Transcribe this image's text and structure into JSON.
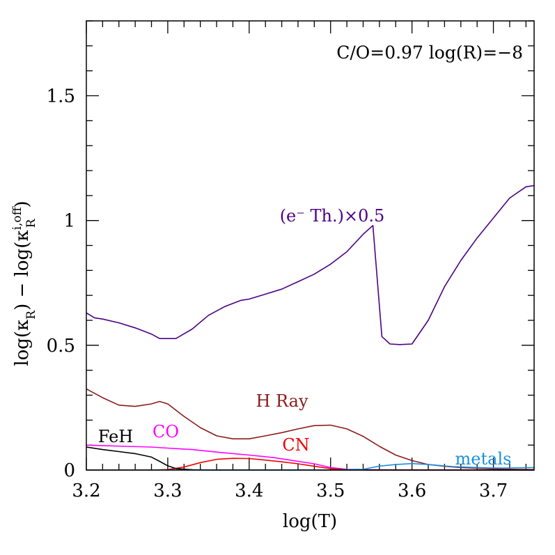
{
  "chart_data": {
    "type": "line",
    "annotation": "C/O=0.97  log(R)=−8",
    "xlabel": "log(T)",
    "ylabel": "log(κ_R) − log(κ_R^{i,off})",
    "xlim": [
      3.2,
      3.75
    ],
    "ylim": [
      0,
      1.8
    ],
    "x_ticks": [
      3.2,
      3.3,
      3.4,
      3.5,
      3.6,
      3.7
    ],
    "x_tick_labels": [
      "3.2",
      "3.3",
      "3.4",
      "3.5",
      "3.6",
      "3.7"
    ],
    "y_ticks": [
      0,
      0.5,
      1,
      1.5
    ],
    "y_tick_labels": [
      "0",
      "0.5",
      "1",
      "1.5"
    ],
    "grid": false,
    "series": [
      {
        "label": "(e⁻ Th.)×0.5",
        "color": "#4b0082",
        "x": [
          3.2,
          3.21,
          3.22,
          3.24,
          3.26,
          3.28,
          3.29,
          3.31,
          3.33,
          3.35,
          3.37,
          3.39,
          3.4,
          3.42,
          3.44,
          3.46,
          3.48,
          3.5,
          3.52,
          3.54,
          3.552,
          3.563,
          3.573,
          3.585,
          3.6,
          3.62,
          3.64,
          3.66,
          3.68,
          3.7,
          3.72,
          3.74,
          3.75
        ],
        "y": [
          0.63,
          0.61,
          0.605,
          0.59,
          0.57,
          0.545,
          0.527,
          0.527,
          0.565,
          0.62,
          0.655,
          0.68,
          0.685,
          0.705,
          0.725,
          0.755,
          0.785,
          0.825,
          0.875,
          0.945,
          0.98,
          0.535,
          0.505,
          0.503,
          0.505,
          0.6,
          0.735,
          0.84,
          0.93,
          1.01,
          1.09,
          1.135,
          1.14
        ]
      },
      {
        "label": "H Ray",
        "color": "#8b1a1a",
        "x": [
          3.2,
          3.22,
          3.24,
          3.26,
          3.28,
          3.29,
          3.3,
          3.32,
          3.34,
          3.36,
          3.38,
          3.4,
          3.42,
          3.44,
          3.46,
          3.48,
          3.5,
          3.52,
          3.54,
          3.56,
          3.58,
          3.6,
          3.62,
          3.64,
          3.66,
          3.68,
          3.7,
          3.72,
          3.75
        ],
        "y": [
          0.325,
          0.29,
          0.26,
          0.255,
          0.265,
          0.275,
          0.265,
          0.215,
          0.17,
          0.137,
          0.125,
          0.125,
          0.137,
          0.15,
          0.165,
          0.178,
          0.18,
          0.165,
          0.135,
          0.095,
          0.06,
          0.038,
          0.022,
          0.015,
          0.01,
          0.007,
          0.005,
          0.003,
          0.002
        ]
      },
      {
        "label": "CO",
        "color": "#ff00ff",
        "x": [
          3.2,
          3.22,
          3.25,
          3.28,
          3.3,
          3.33,
          3.36,
          3.4,
          3.43,
          3.45,
          3.48,
          3.5,
          3.52,
          3.55,
          3.6,
          3.65,
          3.7,
          3.75
        ],
        "y": [
          0.1,
          0.098,
          0.095,
          0.092,
          0.088,
          0.082,
          0.072,
          0.06,
          0.05,
          0.04,
          0.025,
          0.01,
          0.003,
          0.001,
          0.0,
          0.0,
          0.0,
          0.0
        ]
      },
      {
        "label": "CN",
        "color": "#ee0000",
        "x": [
          3.2,
          3.28,
          3.3,
          3.32,
          3.34,
          3.36,
          3.38,
          3.4,
          3.42,
          3.44,
          3.46,
          3.48,
          3.5,
          3.52,
          3.55,
          3.6,
          3.75
        ],
        "y": [
          0.0,
          0.0,
          0.002,
          0.012,
          0.03,
          0.043,
          0.047,
          0.046,
          0.04,
          0.033,
          0.025,
          0.015,
          0.006,
          0.002,
          0.0,
          0.0,
          0.0
        ]
      },
      {
        "label": "FeH",
        "color": "#000000",
        "x": [
          3.2,
          3.22,
          3.24,
          3.26,
          3.28,
          3.29,
          3.3,
          3.31,
          3.33,
          3.35,
          3.4,
          3.5,
          3.6,
          3.75
        ],
        "y": [
          0.092,
          0.082,
          0.074,
          0.066,
          0.052,
          0.035,
          0.017,
          0.006,
          0.001,
          0.0,
          0.0,
          0.0,
          0.0,
          0.0
        ]
      },
      {
        "label": "metals",
        "color": "#1a8fe0",
        "x": [
          3.2,
          3.5,
          3.54,
          3.56,
          3.58,
          3.6,
          3.62,
          3.65,
          3.68,
          3.7,
          3.72,
          3.75
        ],
        "y": [
          0.0,
          0.0,
          0.003,
          0.016,
          0.022,
          0.026,
          0.022,
          0.014,
          0.01,
          0.008,
          0.008,
          0.01
        ]
      }
    ]
  }
}
